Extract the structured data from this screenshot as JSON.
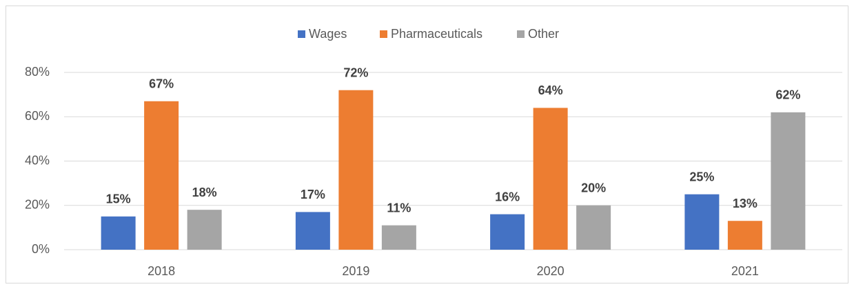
{
  "chart_data": {
    "type": "bar",
    "categories": [
      "2018",
      "2019",
      "2020",
      "2021"
    ],
    "series": [
      {
        "name": "Wages",
        "color": "#4472c4",
        "values": [
          15,
          17,
          16,
          25
        ],
        "value_labels": [
          "15%",
          "17%",
          "16%",
          "25%"
        ]
      },
      {
        "name": "Pharmaceuticals",
        "color": "#ed7d31",
        "values": [
          67,
          72,
          64,
          13
        ],
        "value_labels": [
          "67%",
          "72%",
          "64%",
          "13%"
        ]
      },
      {
        "name": "Other",
        "color": "#a5a5a5",
        "values": [
          18,
          11,
          20,
          62
        ],
        "value_labels": [
          "18%",
          "11%",
          "20%",
          "62%"
        ]
      }
    ],
    "ylim": [
      0,
      80
    ],
    "yticks": [
      {
        "value": 0,
        "label": "0%"
      },
      {
        "value": 20,
        "label": "20%"
      },
      {
        "value": 40,
        "label": "40%"
      },
      {
        "value": 60,
        "label": "60%"
      },
      {
        "value": 80,
        "label": "80%"
      }
    ],
    "grid": true,
    "legend": "top"
  }
}
